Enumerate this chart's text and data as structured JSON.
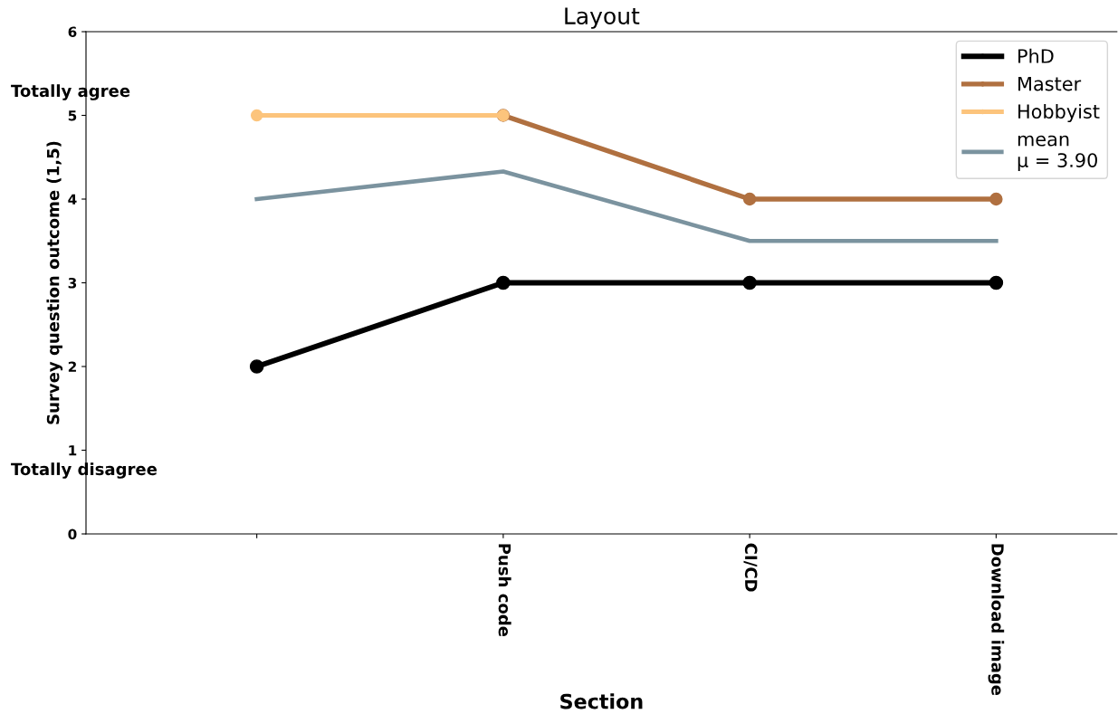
{
  "chart_data": {
    "type": "line",
    "title": "Layout",
    "xlabel": "Section",
    "ylabel": "Survey question outcome (1,5)",
    "categories": [
      null,
      "Push code",
      "CI/CD",
      "Download image"
    ],
    "series": [
      {
        "name": "PhD",
        "color": "#000000",
        "values": [
          2,
          3,
          3,
          3
        ],
        "marker": "circle"
      },
      {
        "name": "Master",
        "color": "#b07040",
        "values": [
          null,
          5,
          4,
          4
        ],
        "marker": "circle"
      },
      {
        "name": "Hobbyist",
        "color": "#fcc47c",
        "values": [
          5,
          5,
          null,
          null
        ],
        "marker": "circle"
      },
      {
        "name": "mean\nμ = 3.90",
        "color": "#7b939f",
        "values": [
          4,
          4.33,
          3.5,
          3.5
        ],
        "marker": "none"
      }
    ],
    "ylim": [
      0,
      6
    ],
    "yticks": [
      0,
      1,
      2,
      3,
      4,
      5,
      6
    ],
    "annotations": [
      "Totally agree",
      "Totally disagree"
    ],
    "grid": false,
    "legend": "top right",
    "line_style": "solid"
  }
}
